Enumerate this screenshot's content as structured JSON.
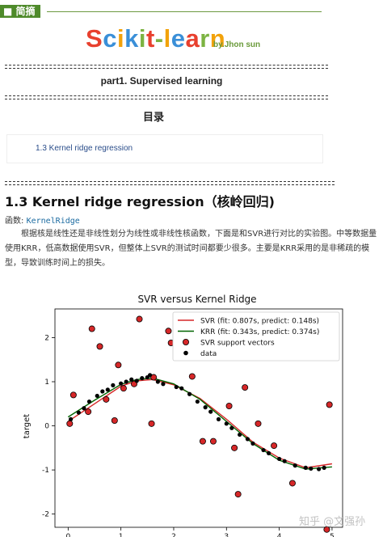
{
  "header": {
    "tag_label": "简摘",
    "title_letters": [
      {
        "ch": "S",
        "color": "#e8402e"
      },
      {
        "ch": "c",
        "color": "#3a8fd8"
      },
      {
        "ch": "i",
        "color": "#f2a20b"
      },
      {
        "ch": "k",
        "color": "#3a8fd8"
      },
      {
        "ch": "i",
        "color": "#7cb342"
      },
      {
        "ch": "t",
        "color": "#e8402e"
      },
      {
        "ch": "-",
        "color": "#7cb342"
      },
      {
        "ch": "l",
        "color": "#f2a20b"
      },
      {
        "ch": "e",
        "color": "#3a8fd8"
      },
      {
        "ch": "a",
        "color": "#e8402e"
      },
      {
        "ch": "r",
        "color": "#7cb342"
      },
      {
        "ch": "n",
        "color": "#f2a20b"
      }
    ],
    "byline": "by.Jhon sun"
  },
  "part_heading": "part1. Supervised learning",
  "toc": {
    "title": "目录",
    "items": [
      "1.3 Kernel ridge regression"
    ]
  },
  "section": {
    "heading": "1.3 Kernel ridge regression（核岭回归)",
    "function_label": "函数: ",
    "function_name": "KernelRidge",
    "paragraph": "根据核是线性还是非线性划分为线性或非线性核函数，下面是和SVR进行对比的实验图。中等数据量使用KRR，低高数据使用SVR，但整体上SVR的测试时间都要少很多。主要是KRR采用的是非稀疏的模型，导致训练时间上的损失。"
  },
  "watermark": "知乎 @文强孙",
  "chart_data": {
    "type": "scatter",
    "title": "SVR versus Kernel Ridge",
    "xlabel": "",
    "ylabel": "target",
    "xlim": [
      -0.25,
      5.2
    ],
    "ylim": [
      -2.3,
      2.65
    ],
    "xticks": [
      0,
      1,
      2,
      3,
      4,
      5
    ],
    "yticks": [
      -2,
      -1,
      0,
      1,
      2
    ],
    "legend_position": "top-right",
    "series": [
      {
        "name": "SVR (fit: 0.807s, predict: 0.148s)",
        "kind": "line",
        "color": "#d62728",
        "x": [
          0,
          0.5,
          1.0,
          1.3,
          1.6,
          2.0,
          2.5,
          3.0,
          3.5,
          4.0,
          4.5,
          5.0
        ],
        "y": [
          0.1,
          0.5,
          0.9,
          1.02,
          1.05,
          0.93,
          0.62,
          0.15,
          -0.37,
          -0.73,
          -0.95,
          -0.86
        ]
      },
      {
        "name": "KRR (fit: 0.343s, predict: 0.374s)",
        "kind": "line",
        "color": "#006400",
        "x": [
          0,
          0.5,
          1.0,
          1.3,
          1.6,
          2.0,
          2.5,
          3.0,
          3.5,
          4.0,
          4.5,
          5.0
        ],
        "y": [
          0.2,
          0.58,
          0.94,
          1.05,
          1.08,
          0.95,
          0.6,
          0.1,
          -0.4,
          -0.78,
          -0.98,
          -0.93
        ]
      },
      {
        "name": "SVR support vectors",
        "kind": "circle",
        "color": "#d62728",
        "x": [
          0.03,
          0.1,
          0.38,
          0.45,
          0.6,
          0.72,
          0.88,
          0.95,
          1.05,
          1.25,
          1.35,
          1.58,
          1.62,
          1.9,
          1.95,
          2.35,
          2.55,
          2.75,
          3.05,
          3.15,
          3.22,
          3.35,
          3.6,
          3.9,
          4.25,
          4.9,
          4.95
        ],
        "y": [
          0.05,
          0.7,
          0.32,
          2.2,
          1.8,
          0.6,
          0.12,
          1.38,
          0.85,
          0.95,
          2.42,
          0.05,
          1.1,
          2.15,
          1.88,
          1.12,
          -0.35,
          -0.35,
          0.45,
          -0.5,
          -1.55,
          0.87,
          0.05,
          -0.45,
          -1.3,
          -2.35,
          0.48
        ]
      },
      {
        "name": "data",
        "kind": "dot",
        "color": "#000000",
        "x": [
          0.05,
          0.2,
          0.3,
          0.4,
          0.55,
          0.65,
          0.75,
          0.85,
          1.0,
          1.1,
          1.2,
          1.3,
          1.4,
          1.5,
          1.55,
          1.7,
          1.8,
          2.05,
          2.15,
          2.3,
          2.45,
          2.6,
          2.7,
          2.85,
          3.0,
          3.1,
          3.25,
          3.4,
          3.5,
          3.7,
          3.8,
          4.0,
          4.1,
          4.3,
          4.5,
          4.6,
          4.75,
          4.85
        ],
        "y": [
          0.15,
          0.3,
          0.4,
          0.55,
          0.68,
          0.78,
          0.82,
          0.92,
          0.96,
          1.0,
          1.05,
          1.02,
          1.08,
          1.1,
          1.15,
          1.0,
          0.95,
          0.88,
          0.85,
          0.72,
          0.55,
          0.42,
          0.32,
          0.15,
          0.05,
          -0.05,
          -0.2,
          -0.3,
          -0.4,
          -0.55,
          -0.62,
          -0.75,
          -0.8,
          -0.9,
          -0.95,
          -0.97,
          -0.98,
          -0.95
        ]
      }
    ]
  }
}
